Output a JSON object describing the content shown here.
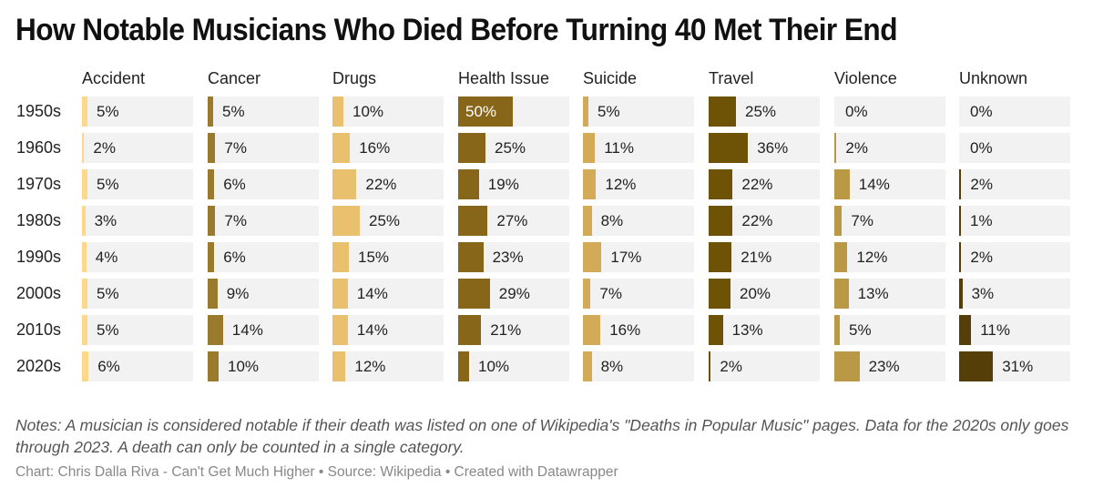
{
  "chart_data": {
    "type": "table",
    "title": "How Notable Musicians Who Died Before Turning 40 Met Their End",
    "value_suffix": "%",
    "scale_max": 100,
    "columns": [
      {
        "name": "Accident",
        "color": "#fcd88a"
      },
      {
        "name": "Cancer",
        "color": "#9a7a2c"
      },
      {
        "name": "Drugs",
        "color": "#e8c06e"
      },
      {
        "name": "Health Issue",
        "color": "#876619"
      },
      {
        "name": "Suicide",
        "color": "#d2aa58"
      },
      {
        "name": "Travel",
        "color": "#6e5205"
      },
      {
        "name": "Violence",
        "color": "#b99846"
      },
      {
        "name": "Unknown",
        "color": "#553e08"
      }
    ],
    "rows": [
      {
        "label": "1950s",
        "values": [
          5,
          5,
          10,
          50,
          5,
          25,
          0,
          0
        ]
      },
      {
        "label": "1960s",
        "values": [
          2,
          7,
          16,
          25,
          11,
          36,
          2,
          0
        ]
      },
      {
        "label": "1970s",
        "values": [
          5,
          6,
          22,
          19,
          12,
          22,
          14,
          2
        ]
      },
      {
        "label": "1980s",
        "values": [
          3,
          7,
          25,
          27,
          8,
          22,
          7,
          1
        ]
      },
      {
        "label": "1990s",
        "values": [
          4,
          6,
          15,
          23,
          17,
          21,
          12,
          2
        ]
      },
      {
        "label": "2000s",
        "values": [
          5,
          9,
          14,
          29,
          7,
          20,
          13,
          3
        ]
      },
      {
        "label": "2010s",
        "values": [
          5,
          14,
          14,
          21,
          16,
          13,
          5,
          11
        ]
      },
      {
        "label": "2020s",
        "values": [
          6,
          10,
          12,
          10,
          8,
          2,
          23,
          31
        ]
      }
    ]
  },
  "notes": "Notes: A musician is considered notable if their death was listed on one of Wikipedia's \"Deaths in Popular Music\" pages. Data for the 2020s only goes through 2023. A death can only be counted in a single category.",
  "credit": "Chart: Chris Dalla Riva - Can't Get Much Higher • Source: Wikipedia • Created with Datawrapper"
}
